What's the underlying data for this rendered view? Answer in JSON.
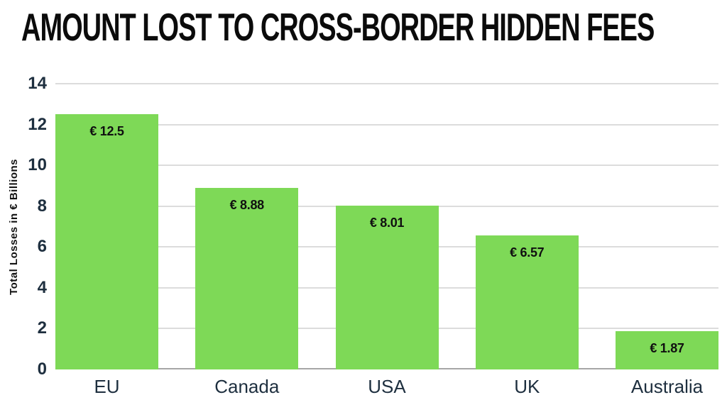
{
  "title": "AMOUNT LOST TO CROSS-BORDER HIDDEN FEES",
  "chart_data": {
    "type": "bar",
    "title": "AMOUNT LOST TO CROSS-BORDER HIDDEN FEES",
    "categories": [
      "EU",
      "Canada",
      "USA",
      "UK",
      "Australia"
    ],
    "values": [
      12.5,
      8.88,
      8.01,
      6.57,
      1.87
    ],
    "bar_labels": [
      "€ 12.5",
      "€ 8.88",
      "€ 8.01",
      "€ 6.57",
      "€ 1.87"
    ],
    "xlabel": "",
    "ylabel": "Total Losses in € Billions",
    "ylim": [
      0,
      14
    ],
    "yticks": [
      0,
      2,
      4,
      6,
      8,
      10,
      12,
      14
    ],
    "grid": true,
    "legend": false,
    "colors": {
      "bar": "#7ED957",
      "axis_text": "#1E2F3F",
      "value_text": "#101010",
      "gridline": "#DCDCDC",
      "baseline": "#A6A6A6",
      "background": "#FFFFFF"
    }
  }
}
